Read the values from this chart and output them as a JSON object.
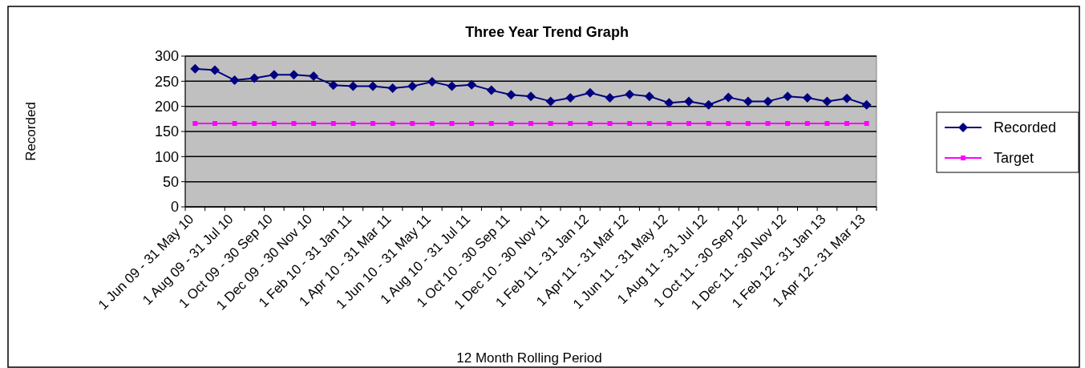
{
  "chart_data": {
    "type": "line",
    "title": "Three Year Trend Graph",
    "xlabel": "12 Month Rolling Period",
    "ylabel": "Recorded",
    "categories": [
      "1 Jun 09 - 31 May 10",
      null,
      "1 Aug 09 - 31 Jul 10",
      null,
      "1 Oct 09 - 30 Sep 10",
      null,
      "1 Dec 09 - 30 Nov 10",
      null,
      "1 Feb 10 - 31 Jan 11",
      null,
      "1 Apr 10 - 31 Mar 11",
      null,
      "1 Jun 10 - 31 May 11",
      null,
      "1 Aug 10 - 31 Jul 11",
      null,
      "1 Oct 10 - 30 Sep 11",
      null,
      "1 Dec 10 - 30 Nov 11",
      null,
      "1 Feb 11 - 31 Jan 12",
      null,
      "1 Apr 11 - 31 Mar 12",
      null,
      "1 Jun 11 - 31 May 12",
      null,
      "1 Aug 11 - 31 Jul 12",
      null,
      "1 Oct 11 - 30 Sep 12",
      null,
      "1 Dec 11 - 30 Nov 12",
      null,
      "1 Feb 12 - 31 Jan 13",
      null,
      "1 Apr 12 - 31 Mar 13"
    ],
    "series": [
      {
        "name": "Recorded",
        "color": "#000080",
        "marker": "diamond",
        "values": [
          275,
          272,
          252,
          256,
          263,
          263,
          260,
          242,
          240,
          240,
          236,
          240,
          249,
          240,
          243,
          232,
          223,
          220,
          210,
          217,
          227,
          217,
          224,
          220,
          207,
          210,
          203,
          218,
          210,
          210,
          220,
          217,
          210,
          216,
          203
        ]
      },
      {
        "name": "Target",
        "color": "#ff00ff",
        "marker": "square",
        "values": [
          166,
          166,
          166,
          166,
          166,
          166,
          166,
          166,
          166,
          166,
          166,
          166,
          166,
          166,
          166,
          166,
          166,
          166,
          166,
          166,
          166,
          166,
          166,
          166,
          166,
          166,
          166,
          166,
          166,
          166,
          166,
          166,
          166,
          166,
          166
        ]
      }
    ],
    "ylim": [
      0,
      300
    ],
    "yticks": [
      0,
      50,
      100,
      150,
      200,
      250,
      300
    ],
    "grid": "y",
    "legend": "right"
  }
}
